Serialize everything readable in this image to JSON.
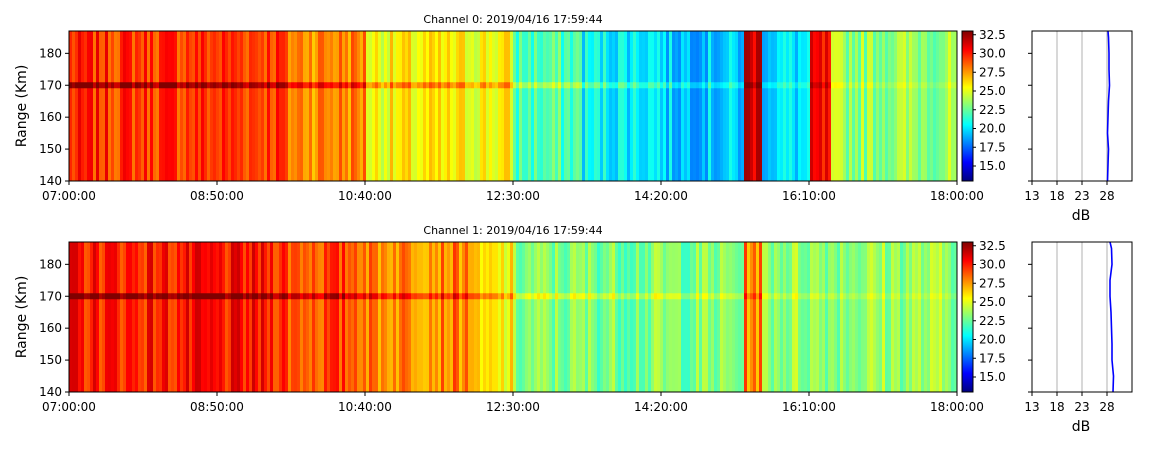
{
  "chart_data": [
    {
      "type": "heatmap",
      "title": "Channel 0: 2019/04/16 17:59:44",
      "ylabel": "Range (Km)",
      "xlim": [
        "07:00:00",
        "18:00:00"
      ],
      "x_ticks": [
        "07:00:00",
        "08:50:00",
        "10:40:00",
        "12:30:00",
        "14:20:00",
        "16:10:00",
        "18:00:00"
      ],
      "ylim": [
        140,
        187
      ],
      "y_ticks": [
        140,
        150,
        160,
        170,
        180
      ],
      "colorbar": {
        "colormap": "jet",
        "range": [
          13,
          33
        ],
        "ticks": [
          "15.0",
          "17.5",
          "20.0",
          "22.5",
          "25.0",
          "27.5",
          "30.0",
          "32.5"
        ]
      },
      "bright_layer_range_km": 170,
      "segments": [
        {
          "from": "07:00:00",
          "to": "09:40:00",
          "level_db": 29.5
        },
        {
          "from": "09:40:00",
          "to": "10:40:00",
          "level_db": 28
        },
        {
          "from": "10:40:00",
          "to": "12:30:00",
          "level_db": 25.5
        },
        {
          "from": "12:30:00",
          "to": "13:20:00",
          "level_db": 22
        },
        {
          "from": "13:20:00",
          "to": "14:20:00",
          "level_db": 20.5
        },
        {
          "from": "14:20:00",
          "to": "15:20:00",
          "level_db": 19.5
        },
        {
          "from": "15:20:00",
          "to": "15:35:00",
          "level_db": 31.5
        },
        {
          "from": "15:35:00",
          "to": "16:10:00",
          "level_db": 20
        },
        {
          "from": "16:10:00",
          "to": "16:25:00",
          "level_db": 30
        },
        {
          "from": "16:25:00",
          "to": "18:00:00",
          "level_db": 23.5
        }
      ],
      "profile": {
        "xlabel": "dB",
        "xlim": [
          13,
          33
        ],
        "x_ticks": [
          13,
          18,
          23,
          28
        ],
        "range_km": [
          140,
          145,
          150,
          155,
          160,
          165,
          170,
          175,
          180,
          185,
          187
        ],
        "values_db": [
          28.1,
          28.2,
          28.3,
          28.1,
          28.2,
          28.3,
          28.5,
          28.4,
          28.4,
          28.3,
          28.2
        ]
      }
    },
    {
      "type": "heatmap",
      "title": "Channel 1: 2019/04/16 17:59:44",
      "ylabel": "Range (Km)",
      "xlim": [
        "07:00:00",
        "18:00:00"
      ],
      "x_ticks": [
        "07:00:00",
        "08:50:00",
        "10:40:00",
        "12:30:00",
        "14:20:00",
        "16:10:00",
        "18:00:00"
      ],
      "ylim": [
        140,
        187
      ],
      "y_ticks": [
        140,
        150,
        160,
        170,
        180
      ],
      "colorbar": {
        "colormap": "jet",
        "range": [
          13,
          33
        ],
        "ticks": [
          "15.0",
          "17.5",
          "20.0",
          "22.5",
          "25.0",
          "27.5",
          "30.0",
          "32.5"
        ]
      },
      "bright_layer_range_km": 170,
      "segments": [
        {
          "from": "07:00:00",
          "to": "09:40:00",
          "level_db": 30
        },
        {
          "from": "09:40:00",
          "to": "10:40:00",
          "level_db": 29
        },
        {
          "from": "10:40:00",
          "to": "12:00:00",
          "level_db": 28
        },
        {
          "from": "12:00:00",
          "to": "12:30:00",
          "level_db": 25.5
        },
        {
          "from": "12:30:00",
          "to": "15:20:00",
          "level_db": 23
        },
        {
          "from": "15:20:00",
          "to": "15:35:00",
          "level_db": 28
        },
        {
          "from": "15:35:00",
          "to": "18:00:00",
          "level_db": 23.5
        }
      ],
      "profile": {
        "xlabel": "dB",
        "xlim": [
          13,
          33
        ],
        "x_ticks": [
          13,
          18,
          23,
          28
        ],
        "range_km": [
          140,
          145,
          150,
          155,
          160,
          165,
          170,
          175,
          180,
          185,
          187
        ],
        "values_db": [
          29.2,
          29.3,
          29.0,
          29.0,
          28.9,
          28.8,
          28.6,
          28.6,
          29.0,
          28.9,
          28.6
        ]
      }
    }
  ]
}
